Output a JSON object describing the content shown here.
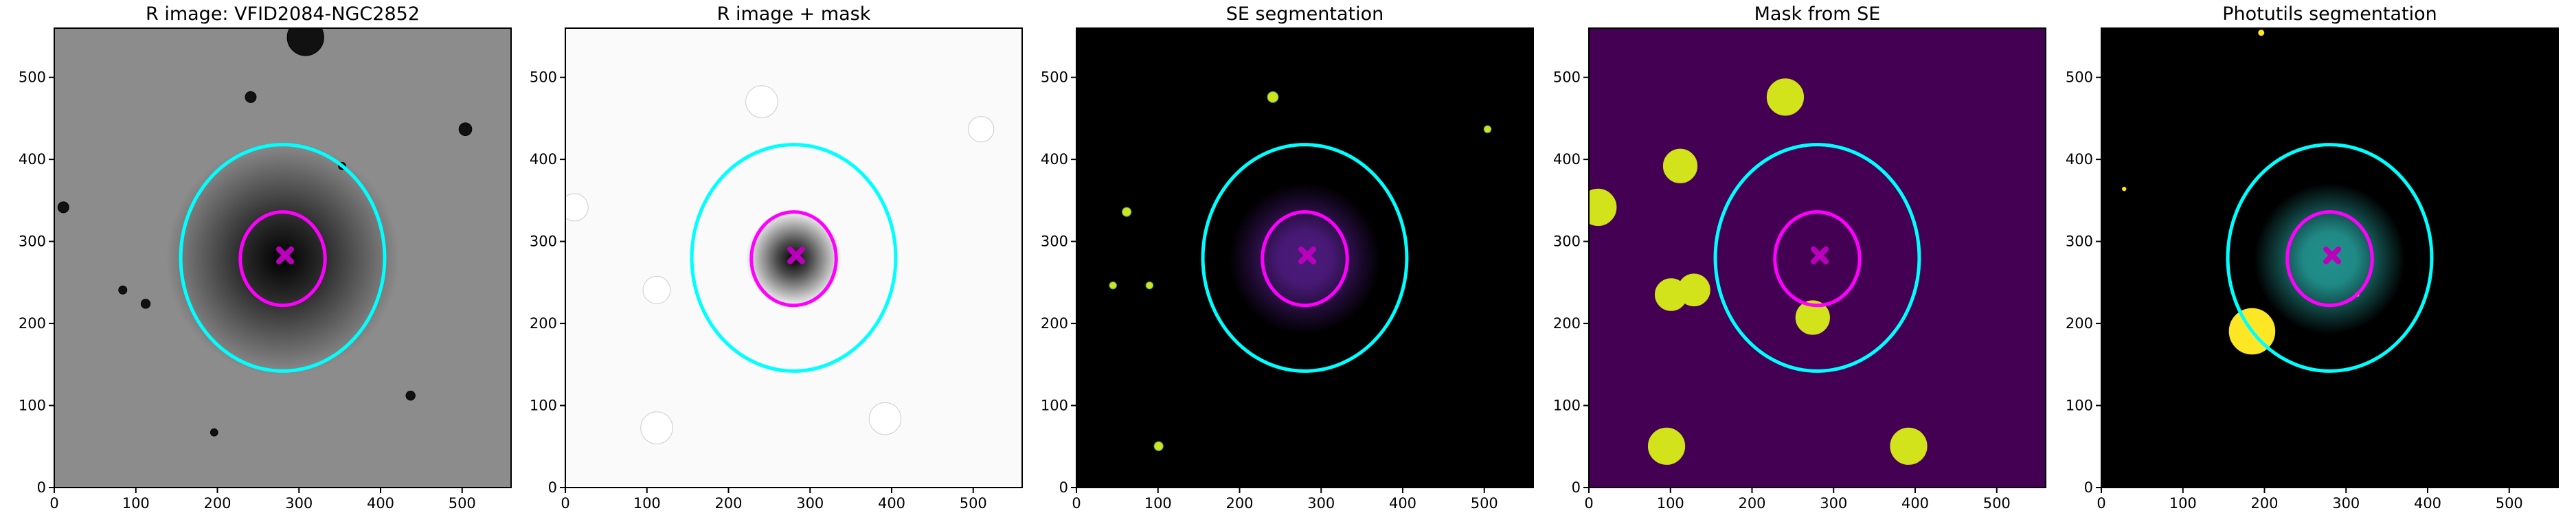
{
  "chart_data": [
    {
      "type": "image",
      "title": "R image: VFID2084-NGC2852",
      "background": "#8c8c8c",
      "glow": "#000000",
      "xlim": [
        0,
        560
      ],
      "ylim": [
        0,
        560
      ],
      "xticks": [
        0,
        100,
        200,
        300,
        400,
        500
      ],
      "yticks": [
        0,
        100,
        200,
        300,
        400,
        500
      ],
      "ellipses": [
        {
          "color": "#00ffff",
          "cx": 280,
          "cy": 280,
          "rx": 125,
          "ry": 138
        },
        {
          "color": "#ff00ff",
          "cx": 280,
          "cy": 279,
          "rx": 52,
          "ry": 57
        }
      ],
      "marker": {
        "color": "#bb00bb",
        "x": 283,
        "y": 283
      }
    },
    {
      "type": "image",
      "title": "R image + mask",
      "background": "#fafafa",
      "glow": "#000000",
      "xlim": [
        0,
        560
      ],
      "ylim": [
        0,
        560
      ],
      "xticks": [
        0,
        100,
        200,
        300,
        400,
        500
      ],
      "yticks": [
        0,
        100,
        200,
        300,
        400,
        500
      ],
      "ellipses": [
        {
          "color": "#00ffff",
          "cx": 280,
          "cy": 280,
          "rx": 125,
          "ry": 138
        },
        {
          "color": "#ff00ff",
          "cx": 280,
          "cy": 279,
          "rx": 52,
          "ry": 57
        }
      ],
      "marker": {
        "color": "#bb00bb",
        "x": 283,
        "y": 283
      }
    },
    {
      "type": "image",
      "title": "SE segmentation",
      "background": "#000000",
      "glow": "#4b1a7a",
      "xlim": [
        0,
        560
      ],
      "ylim": [
        0,
        560
      ],
      "xticks": [
        0,
        100,
        200,
        300,
        400,
        500
      ],
      "yticks": [
        0,
        100,
        200,
        300,
        400,
        500
      ],
      "ellipses": [
        {
          "color": "#00ffff",
          "cx": 280,
          "cy": 280,
          "rx": 125,
          "ry": 138
        },
        {
          "color": "#ff00ff",
          "cx": 280,
          "cy": 279,
          "rx": 52,
          "ry": 57
        }
      ],
      "marker": {
        "color": "#bb00bb",
        "x": 283,
        "y": 283
      }
    },
    {
      "type": "image",
      "title": "Mask from SE",
      "background": "#440154",
      "glow": "#440154",
      "xlim": [
        0,
        560
      ],
      "ylim": [
        0,
        560
      ],
      "xticks": [
        0,
        100,
        200,
        300,
        400,
        500
      ],
      "yticks": [
        0,
        100,
        200,
        300,
        400,
        500
      ],
      "ellipses": [
        {
          "color": "#00ffff",
          "cx": 280,
          "cy": 280,
          "rx": 125,
          "ry": 138
        },
        {
          "color": "#ff00ff",
          "cx": 280,
          "cy": 279,
          "rx": 52,
          "ry": 57
        }
      ],
      "marker": {
        "color": "#bb00bb",
        "x": 283,
        "y": 283
      }
    },
    {
      "type": "image",
      "title": "Photutils segmentation",
      "background": "#000000",
      "glow": "#21908c",
      "xlim": [
        0,
        560
      ],
      "ylim": [
        0,
        560
      ],
      "xticks": [
        0,
        100,
        200,
        300,
        400,
        500
      ],
      "yticks": [
        0,
        100,
        200,
        300,
        400,
        500
      ],
      "ellipses": [
        {
          "color": "#00ffff",
          "cx": 280,
          "cy": 280,
          "rx": 125,
          "ry": 138
        },
        {
          "color": "#ff00ff",
          "cx": 280,
          "cy": 279,
          "rx": 52,
          "ry": 57
        }
      ],
      "marker": {
        "color": "#bb00bb",
        "x": 283,
        "y": 283
      }
    }
  ]
}
